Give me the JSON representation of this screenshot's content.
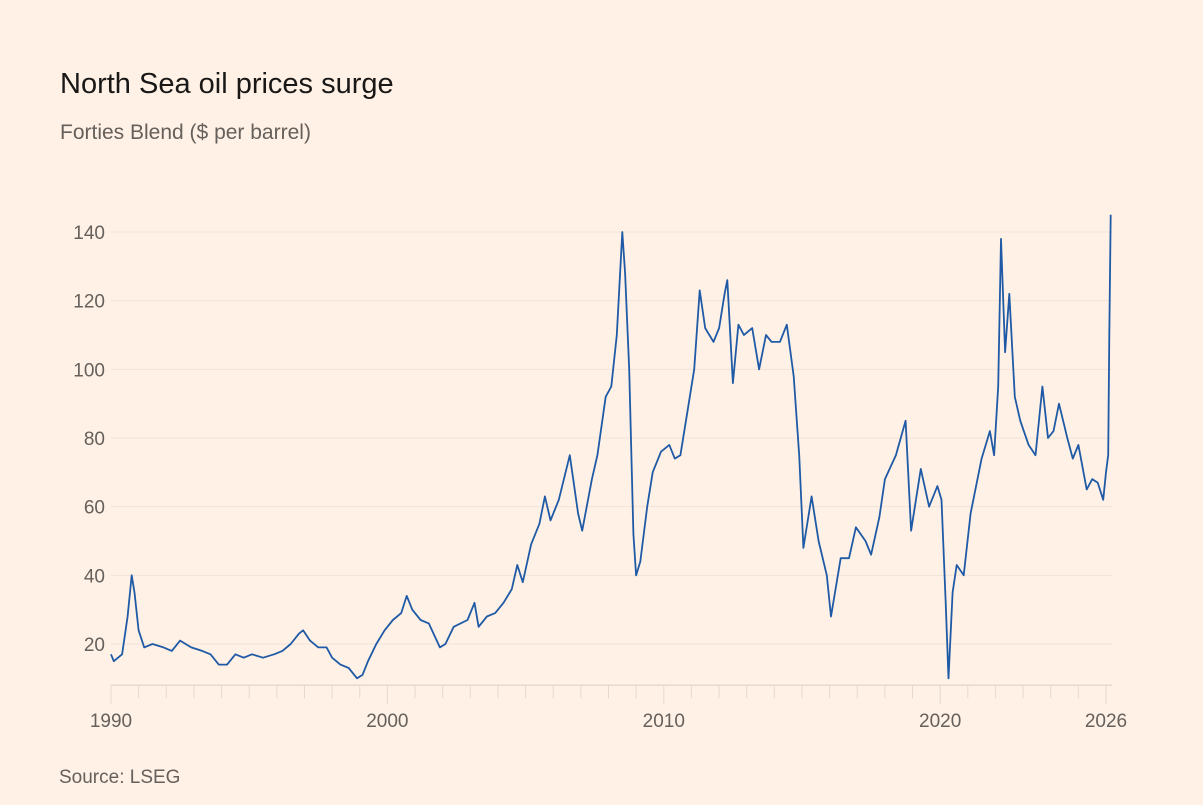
{
  "chart_data": {
    "type": "line",
    "title": "North Sea oil prices surge",
    "subtitle": "Forties Blend ($ per barrel)",
    "source": "Source: LSEG",
    "xlabel": "",
    "ylabel": "",
    "xlim": [
      1990,
      2026.2
    ],
    "ylim": [
      8,
      148
    ],
    "grid": true,
    "y_ticks": [
      20,
      40,
      60,
      80,
      100,
      120,
      140
    ],
    "x_ticks": [
      1990,
      2000,
      2010,
      2020,
      2026
    ],
    "x_tick_labels": [
      "1990",
      "2000",
      "2010",
      "2020",
      "2026"
    ],
    "colors": {
      "line": "#1f5aa6",
      "grid": "#f0e3d8",
      "axis": "#e6d9ce"
    },
    "series": [
      {
        "name": "Forties Blend",
        "points": [
          [
            1990.0,
            17
          ],
          [
            1990.1,
            15
          ],
          [
            1990.4,
            17
          ],
          [
            1990.6,
            28
          ],
          [
            1990.75,
            40
          ],
          [
            1990.85,
            35
          ],
          [
            1991.0,
            24
          ],
          [
            1991.2,
            19
          ],
          [
            1991.5,
            20
          ],
          [
            1991.9,
            19
          ],
          [
            1992.2,
            18
          ],
          [
            1992.5,
            21
          ],
          [
            1992.9,
            19
          ],
          [
            1993.3,
            18
          ],
          [
            1993.6,
            17
          ],
          [
            1993.9,
            14
          ],
          [
            1994.2,
            14
          ],
          [
            1994.5,
            17
          ],
          [
            1994.8,
            16
          ],
          [
            1995.1,
            17
          ],
          [
            1995.5,
            16
          ],
          [
            1995.9,
            17
          ],
          [
            1996.2,
            18
          ],
          [
            1996.5,
            20
          ],
          [
            1996.8,
            23
          ],
          [
            1996.95,
            24
          ],
          [
            1997.2,
            21
          ],
          [
            1997.5,
            19
          ],
          [
            1997.8,
            19
          ],
          [
            1998.0,
            16
          ],
          [
            1998.3,
            14
          ],
          [
            1998.6,
            13
          ],
          [
            1998.9,
            10
          ],
          [
            1999.1,
            11
          ],
          [
            1999.3,
            15
          ],
          [
            1999.6,
            20
          ],
          [
            1999.9,
            24
          ],
          [
            2000.2,
            27
          ],
          [
            2000.5,
            29
          ],
          [
            2000.7,
            34
          ],
          [
            2000.9,
            30
          ],
          [
            2001.2,
            27
          ],
          [
            2001.5,
            26
          ],
          [
            2001.9,
            19
          ],
          [
            2002.1,
            20
          ],
          [
            2002.4,
            25
          ],
          [
            2002.9,
            27
          ],
          [
            2003.15,
            32
          ],
          [
            2003.3,
            25
          ],
          [
            2003.6,
            28
          ],
          [
            2003.9,
            29
          ],
          [
            2004.2,
            32
          ],
          [
            2004.5,
            36
          ],
          [
            2004.7,
            43
          ],
          [
            2004.9,
            38
          ],
          [
            2005.2,
            49
          ],
          [
            2005.5,
            55
          ],
          [
            2005.7,
            63
          ],
          [
            2005.9,
            56
          ],
          [
            2006.2,
            62
          ],
          [
            2006.6,
            75
          ],
          [
            2006.9,
            58
          ],
          [
            2007.05,
            53
          ],
          [
            2007.4,
            68
          ],
          [
            2007.6,
            75
          ],
          [
            2007.9,
            92
          ],
          [
            2008.1,
            95
          ],
          [
            2008.3,
            110
          ],
          [
            2008.5,
            140
          ],
          [
            2008.6,
            128
          ],
          [
            2008.75,
            100
          ],
          [
            2008.9,
            52
          ],
          [
            2009.0,
            40
          ],
          [
            2009.15,
            44
          ],
          [
            2009.4,
            60
          ],
          [
            2009.6,
            70
          ],
          [
            2009.9,
            76
          ],
          [
            2010.2,
            78
          ],
          [
            2010.4,
            74
          ],
          [
            2010.6,
            75
          ],
          [
            2010.9,
            90
          ],
          [
            2011.1,
            100
          ],
          [
            2011.3,
            123
          ],
          [
            2011.5,
            112
          ],
          [
            2011.8,
            108
          ],
          [
            2012.0,
            112
          ],
          [
            2012.2,
            122
          ],
          [
            2012.3,
            126
          ],
          [
            2012.5,
            96
          ],
          [
            2012.7,
            113
          ],
          [
            2012.9,
            110
          ],
          [
            2013.2,
            112
          ],
          [
            2013.45,
            100
          ],
          [
            2013.7,
            110
          ],
          [
            2013.9,
            108
          ],
          [
            2014.2,
            108
          ],
          [
            2014.45,
            113
          ],
          [
            2014.7,
            98
          ],
          [
            2014.9,
            75
          ],
          [
            2015.05,
            48
          ],
          [
            2015.35,
            63
          ],
          [
            2015.6,
            50
          ],
          [
            2015.9,
            40
          ],
          [
            2016.05,
            28
          ],
          [
            2016.4,
            45
          ],
          [
            2016.7,
            45
          ],
          [
            2016.95,
            54
          ],
          [
            2017.3,
            50
          ],
          [
            2017.5,
            46
          ],
          [
            2017.8,
            57
          ],
          [
            2018.0,
            68
          ],
          [
            2018.4,
            75
          ],
          [
            2018.75,
            85
          ],
          [
            2018.95,
            53
          ],
          [
            2019.3,
            71
          ],
          [
            2019.6,
            60
          ],
          [
            2019.9,
            66
          ],
          [
            2020.05,
            62
          ],
          [
            2020.2,
            32
          ],
          [
            2020.3,
            10
          ],
          [
            2020.45,
            35
          ],
          [
            2020.6,
            43
          ],
          [
            2020.85,
            40
          ],
          [
            2021.1,
            58
          ],
          [
            2021.5,
            74
          ],
          [
            2021.8,
            82
          ],
          [
            2021.95,
            75
          ],
          [
            2022.1,
            95
          ],
          [
            2022.2,
            138
          ],
          [
            2022.35,
            105
          ],
          [
            2022.5,
            122
          ],
          [
            2022.7,
            92
          ],
          [
            2022.9,
            85
          ],
          [
            2023.2,
            78
          ],
          [
            2023.45,
            75
          ],
          [
            2023.7,
            95
          ],
          [
            2023.9,
            80
          ],
          [
            2024.1,
            82
          ],
          [
            2024.3,
            90
          ],
          [
            2024.6,
            80
          ],
          [
            2024.8,
            74
          ],
          [
            2025.0,
            78
          ],
          [
            2025.3,
            65
          ],
          [
            2025.5,
            68
          ],
          [
            2025.7,
            67
          ],
          [
            2025.9,
            62
          ],
          [
            2026.0,
            70
          ],
          [
            2026.08,
            75
          ],
          [
            2026.12,
            110
          ],
          [
            2026.17,
            145
          ]
        ]
      }
    ]
  }
}
